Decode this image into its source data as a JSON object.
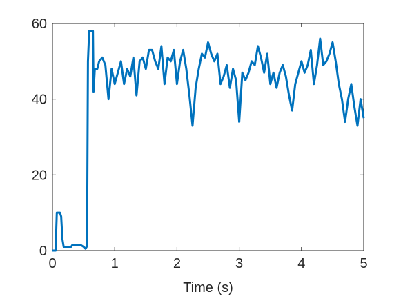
{
  "chart_data": {
    "type": "line",
    "x_label": "Time (s)",
    "x": [
      0,
      0.05,
      0.07,
      0.12,
      0.14,
      0.16,
      0.18,
      0.3,
      0.32,
      0.45,
      0.5,
      0.53,
      0.55,
      0.56,
      0.57,
      0.59,
      0.65,
      0.66,
      0.68,
      0.72,
      0.75,
      0.8,
      0.85,
      0.9,
      0.95,
      1.0,
      1.05,
      1.1,
      1.15,
      1.2,
      1.25,
      1.3,
      1.35,
      1.4,
      1.45,
      1.5,
      1.55,
      1.6,
      1.65,
      1.7,
      1.75,
      1.8,
      1.85,
      1.9,
      1.95,
      2.0,
      2.05,
      2.1,
      2.15,
      2.2,
      2.25,
      2.3,
      2.35,
      2.4,
      2.45,
      2.5,
      2.55,
      2.6,
      2.65,
      2.7,
      2.75,
      2.8,
      2.85,
      2.9,
      2.95,
      3.0,
      3.05,
      3.1,
      3.15,
      3.2,
      3.25,
      3.3,
      3.35,
      3.4,
      3.45,
      3.5,
      3.55,
      3.6,
      3.65,
      3.7,
      3.75,
      3.8,
      3.85,
      3.9,
      3.95,
      4.0,
      4.05,
      4.1,
      4.15,
      4.2,
      4.25,
      4.3,
      4.35,
      4.4,
      4.45,
      4.5,
      4.55,
      4.6,
      4.65,
      4.7,
      4.75,
      4.8,
      4.85,
      4.9,
      4.95,
      5.0
    ],
    "series": [
      {
        "color": "#0072bd",
        "values": [
          0,
          0,
          10,
          10,
          9,
          3,
          1,
          1,
          1.5,
          1.5,
          1,
          0.5,
          1,
          17,
          50,
          58,
          58,
          42,
          48,
          48,
          50,
          51,
          49,
          40,
          48,
          44,
          47,
          50,
          44,
          48,
          46,
          51,
          41,
          50,
          51,
          48,
          53,
          53,
          50,
          48,
          54,
          44,
          51,
          50,
          53,
          44,
          50,
          53,
          48,
          41,
          33,
          43,
          48,
          52,
          51,
          55,
          52,
          50,
          52,
          44,
          46,
          49,
          43,
          48,
          45,
          34,
          47,
          45,
          47,
          50,
          49,
          54,
          51,
          47,
          52,
          44,
          47,
          43,
          47,
          49,
          46,
          41,
          37,
          44,
          47,
          50,
          47,
          49,
          53,
          44,
          49,
          56,
          49,
          50,
          52,
          55,
          50,
          44,
          40,
          34,
          40,
          44,
          38,
          33,
          40,
          35
        ]
      }
    ],
    "xlim": [
      0,
      5
    ],
    "xticks": [
      0,
      1,
      2,
      3,
      4,
      5
    ],
    "ylim": [
      0,
      60
    ],
    "yticks": [
      0,
      20,
      40,
      60
    ]
  }
}
